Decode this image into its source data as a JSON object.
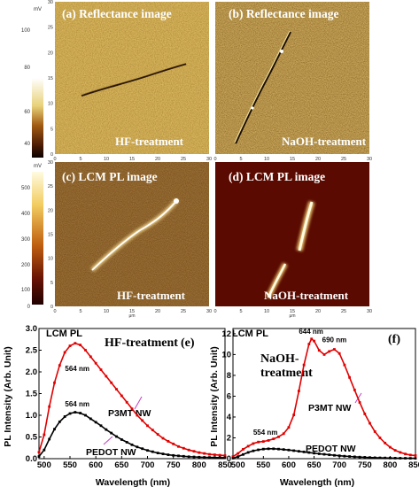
{
  "colors": {
    "reflect_dark": "#3a2a08",
    "reflect_mid": "#9a6a1a",
    "reflect_light": "#e8c060",
    "pl_dark": "#5a0a00",
    "pl_bright": "#fff6c0",
    "p3mt": "#e00000",
    "pedot": "#000000"
  },
  "colorbars": [
    {
      "unit": "mV",
      "ticks": [
        "100",
        "80",
        "60",
        "40"
      ]
    },
    {
      "unit": "mV",
      "ticks": [
        "500",
        "400",
        "300",
        "200",
        "100",
        "0"
      ]
    }
  ],
  "panels": {
    "a": {
      "title": "(a) Reflectance image",
      "caption": "HF-treatment",
      "x_ticks": [
        "0",
        "5",
        "10",
        "15",
        "20",
        "25",
        "30"
      ],
      "y_ticks": [
        "30",
        "25",
        "20",
        "15",
        "10",
        "5",
        "0"
      ],
      "axis_unit": "μm"
    },
    "b": {
      "title": "(b) Reflectance image",
      "caption": "NaOH-treatment",
      "x_ticks": [
        "0",
        "5",
        "10",
        "15",
        "20",
        "25",
        "30"
      ],
      "axis_unit": "μm"
    },
    "c": {
      "title": "(c)   LCM PL image",
      "caption": "HF-treatment",
      "x_ticks": [
        "0",
        "5",
        "10",
        "15",
        "20",
        "25",
        "30"
      ],
      "y_ticks": [
        "30",
        "25",
        "20",
        "15",
        "10",
        "5",
        "0"
      ],
      "axis_unit": "μm"
    },
    "d": {
      "title": "(d)   LCM PL image",
      "caption": "NaOH-treatment",
      "x_ticks": [
        "0",
        "5",
        "10",
        "15",
        "20",
        "25",
        "30"
      ],
      "axis_unit": "μm"
    }
  },
  "chart_data": [
    {
      "type": "scatter",
      "panel_label": "(e)",
      "corner_label": "LCM PL",
      "treatment": "HF-treatment",
      "xlabel": "Wavelength (nm)",
      "ylabel": "PL Intensity (Arb. Unit)",
      "xlim": [
        490,
        850
      ],
      "ylim": [
        0,
        3.0
      ],
      "x_ticks": [
        500,
        550,
        600,
        650,
        700,
        750,
        800,
        850
      ],
      "y_ticks": [
        0.0,
        0.5,
        1.0,
        1.5,
        2.0,
        2.5,
        3.0
      ],
      "y_tick_labels": [
        "0.0",
        "0.5",
        "1.0",
        "1.5",
        "2.0",
        "2.5",
        "3.0"
      ],
      "annotations": [
        {
          "text": "564 nm",
          "x": 564,
          "y": 2.02
        },
        {
          "text": "564 nm",
          "x": 564,
          "y": 1.2
        }
      ],
      "series": [
        {
          "name": "P3MT NW",
          "color": "#e00000",
          "x": [
            490,
            500,
            510,
            520,
            530,
            540,
            550,
            560,
            570,
            580,
            590,
            600,
            610,
            620,
            630,
            640,
            650,
            660,
            670,
            680,
            690,
            700,
            710,
            720,
            730,
            740,
            750,
            760,
            770,
            780,
            790,
            800,
            810,
            820,
            830,
            840,
            850
          ],
          "y": [
            0.15,
            0.55,
            1.2,
            1.75,
            2.15,
            2.45,
            2.6,
            2.66,
            2.62,
            2.5,
            2.35,
            2.2,
            2.05,
            1.9,
            1.75,
            1.6,
            1.45,
            1.3,
            1.15,
            1.0,
            0.88,
            0.76,
            0.66,
            0.56,
            0.47,
            0.4,
            0.34,
            0.28,
            0.24,
            0.2,
            0.17,
            0.14,
            0.12,
            0.1,
            0.09,
            0.08,
            0.07
          ]
        },
        {
          "name": "PEDOT NW",
          "color": "#000000",
          "x": [
            490,
            500,
            510,
            520,
            530,
            540,
            550,
            560,
            570,
            580,
            590,
            600,
            610,
            620,
            630,
            640,
            650,
            660,
            670,
            680,
            690,
            700,
            710,
            720,
            730,
            740,
            750,
            760,
            770,
            780,
            790,
            800,
            810,
            820,
            830,
            840,
            850
          ],
          "y": [
            0.05,
            0.2,
            0.45,
            0.68,
            0.85,
            0.97,
            1.04,
            1.07,
            1.05,
            1.0,
            0.92,
            0.84,
            0.76,
            0.67,
            0.59,
            0.51,
            0.44,
            0.38,
            0.32,
            0.27,
            0.23,
            0.19,
            0.16,
            0.13,
            0.11,
            0.09,
            0.075,
            0.065,
            0.055,
            0.045,
            0.04,
            0.035,
            0.03,
            0.028,
            0.026,
            0.024,
            0.022
          ]
        }
      ]
    },
    {
      "type": "scatter",
      "panel_label": "(f)",
      "corner_label": "LCM PL",
      "treatment": "NaOH-\ntreatment",
      "xlabel": "Wavelength (nm)",
      "ylabel": "PL Intensity (Arb. Unit)",
      "xlim": [
        490,
        850
      ],
      "ylim": [
        0,
        12.5
      ],
      "x_ticks": [
        500,
        550,
        600,
        650,
        700,
        750,
        800,
        850
      ],
      "y_ticks": [
        0,
        2,
        4,
        6,
        8,
        10,
        12
      ],
      "y_tick_labels": [
        "0",
        "2",
        "4",
        "6",
        "8",
        "10",
        "12"
      ],
      "annotations": [
        {
          "text": "644 nm",
          "x": 644,
          "y": 12.0
        },
        {
          "text": "690 nm",
          "x": 690,
          "y": 11.2
        },
        {
          "text": "554 nm",
          "x": 554,
          "y": 2.3
        }
      ],
      "series": [
        {
          "name": "P3MT NW",
          "color": "#e00000",
          "x": [
            490,
            500,
            510,
            520,
            530,
            540,
            550,
            560,
            570,
            580,
            590,
            600,
            610,
            620,
            630,
            640,
            645,
            650,
            660,
            670,
            680,
            690,
            700,
            710,
            720,
            730,
            740,
            750,
            760,
            770,
            780,
            790,
            800,
            810,
            820,
            830,
            840,
            850
          ],
          "y": [
            0.2,
            0.5,
            0.9,
            1.2,
            1.45,
            1.6,
            1.65,
            1.75,
            1.9,
            2.1,
            2.4,
            3.0,
            4.2,
            6.5,
            9.0,
            11.0,
            11.5,
            11.3,
            10.4,
            10.0,
            10.3,
            10.5,
            10.1,
            9.0,
            7.8,
            6.6,
            5.4,
            4.3,
            3.4,
            2.6,
            2.0,
            1.5,
            1.1,
            0.8,
            0.6,
            0.45,
            0.35,
            0.3
          ]
        },
        {
          "name": "PEDOT NW",
          "color": "#000000",
          "x": [
            490,
            500,
            510,
            520,
            530,
            540,
            550,
            560,
            570,
            580,
            590,
            600,
            610,
            620,
            630,
            640,
            650,
            660,
            670,
            680,
            690,
            700,
            710,
            720,
            730,
            740,
            750,
            760,
            770,
            780,
            790,
            800,
            810,
            820,
            830,
            840,
            850
          ],
          "y": [
            0.05,
            0.2,
            0.4,
            0.6,
            0.75,
            0.85,
            0.92,
            0.95,
            0.95,
            0.92,
            0.88,
            0.83,
            0.77,
            0.71,
            0.65,
            0.59,
            0.53,
            0.47,
            0.42,
            0.37,
            0.32,
            0.28,
            0.24,
            0.21,
            0.18,
            0.15,
            0.13,
            0.11,
            0.09,
            0.08,
            0.07,
            0.06,
            0.05,
            0.045,
            0.04,
            0.035,
            0.03
          ]
        }
      ]
    }
  ]
}
